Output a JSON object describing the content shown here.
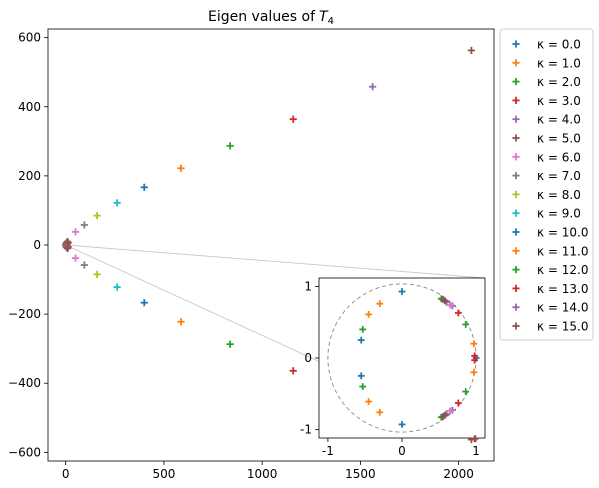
{
  "chart_data": [
    {
      "type": "scatter",
      "title": "Eigen values of T_4",
      "title_prefix": "Eigen values of",
      "title_math": "T",
      "title_sub": "4",
      "xlim": [
        -90,
        2180
      ],
      "ylim": [
        -625,
        625
      ],
      "xticks": [
        0,
        500,
        1000,
        1500,
        2000
      ],
      "xtick_labels": [
        "0",
        "500",
        "1000",
        "1500",
        "2000"
      ],
      "yticks": [
        -600,
        -400,
        -200,
        0,
        200,
        400,
        600
      ],
      "ytick_labels": [
        "−600",
        "−400",
        "−200",
        "0",
        "200",
        "400",
        "600"
      ],
      "grid": false,
      "legend_placement": "outside-upper-right",
      "marker": "+",
      "series": [
        {
          "name": "κ = 0.0",
          "color": "#1f77b4",
          "points": [
            [
              1,
              0
            ],
            [
              0,
              1
            ],
            [
              0,
              -1
            ],
            [
              -1,
              0
            ]
          ]
        },
        {
          "name": "κ = 1.0",
          "color": "#ff7f0e",
          "points": [
            [
              1.5,
              0.2
            ],
            [
              1.5,
              -0.2
            ],
            [
              1,
              0.1
            ]
          ]
        },
        {
          "name": "κ = 2.0",
          "color": "#2ca02c",
          "points": [
            [
              3,
              5
            ],
            [
              3,
              -5
            ],
            [
              5,
              3
            ],
            [
              5,
              -3
            ]
          ]
        },
        {
          "name": "κ = 3.0",
          "color": "#d62728",
          "points": [
            [
              5,
              6
            ],
            [
              5,
              -6
            ],
            [
              7,
              4
            ],
            [
              7,
              -4
            ]
          ]
        },
        {
          "name": "κ = 4.0",
          "color": "#9467bd",
          "points": [
            [
              7,
              8
            ],
            [
              7,
              -8
            ],
            [
              9,
              5
            ],
            [
              9,
              -5
            ]
          ]
        },
        {
          "name": "κ = 5.0",
          "color": "#8c564b",
          "points": [
            [
              10,
              10
            ],
            [
              10,
              -10
            ],
            [
              12,
              6
            ],
            [
              12,
              -6
            ]
          ]
        },
        {
          "name": "κ = 6.0",
          "color": "#e377c2",
          "points": [
            [
              50,
              38
            ],
            [
              50,
              -38
            ]
          ]
        },
        {
          "name": "κ = 7.0",
          "color": "#7f7f7f",
          "points": [
            [
              95,
              58
            ],
            [
              95,
              -58
            ]
          ]
        },
        {
          "name": "κ = 8.0",
          "color": "#bcbd22",
          "points": [
            [
              160,
              85
            ],
            [
              160,
              -85
            ]
          ]
        },
        {
          "name": "κ = 9.0",
          "color": "#17becf",
          "points": [
            [
              262,
              122
            ],
            [
              262,
              -122
            ]
          ]
        },
        {
          "name": "κ = 10.0",
          "color": "#1f77b4",
          "points": [
            [
              400,
              167
            ],
            [
              400,
              -167
            ]
          ]
        },
        {
          "name": "κ = 11.0",
          "color": "#ff7f0e",
          "points": [
            [
              587,
              222
            ],
            [
              587,
              -222
            ]
          ]
        },
        {
          "name": "κ = 12.0",
          "color": "#2ca02c",
          "points": [
            [
              837,
              287
            ],
            [
              837,
              -287
            ]
          ]
        },
        {
          "name": "κ = 13.0",
          "color": "#d62728",
          "points": [
            [
              1158,
              364
            ],
            [
              1158,
              -364
            ]
          ]
        },
        {
          "name": "κ = 14.0",
          "color": "#9467bd",
          "points": [
            [
              1562,
              458
            ],
            [
              1562,
              -458
            ]
          ]
        },
        {
          "name": "κ = 15.0",
          "color": "#8c564b",
          "points": [
            [
              2065,
              563
            ],
            [
              2065,
              -563
            ]
          ]
        }
      ]
    },
    {
      "type": "scatter",
      "title": "",
      "xlim": [
        -1.12,
        1.12
      ],
      "ylim": [
        -1.12,
        1.12
      ],
      "xticks": [
        -1,
        0,
        1
      ],
      "xtick_labels": [
        "-1",
        "0",
        "1"
      ],
      "yticks": [
        -1,
        0,
        1
      ],
      "ytick_labels": [
        "-1",
        "0",
        "1"
      ],
      "grid": false,
      "unit_circle": true,
      "marker": "+",
      "series": [
        {
          "name": "κ = 0.0",
          "color": "#1f77b4",
          "points": [
            [
              1,
              0
            ],
            [
              0,
              0.93
            ],
            [
              0,
              -0.93
            ],
            [
              -0.55,
              0.25
            ],
            [
              -0.55,
              -0.25
            ]
          ]
        },
        {
          "name": "κ = 1.0",
          "color": "#ff7f0e",
          "points": [
            [
              -0.3,
              0.76
            ],
            [
              -0.3,
              -0.76
            ],
            [
              -0.45,
              0.61
            ],
            [
              -0.45,
              -0.61
            ],
            [
              0.97,
              0.2
            ],
            [
              0.97,
              -0.2
            ]
          ]
        },
        {
          "name": "κ = 2.0",
          "color": "#2ca02c",
          "points": [
            [
              -0.53,
              0.4
            ],
            [
              -0.53,
              -0.4
            ],
            [
              0.86,
              0.47
            ],
            [
              0.86,
              -0.47
            ],
            [
              0.53,
              0.83
            ],
            [
              0.53,
              -0.83
            ]
          ]
        },
        {
          "name": "κ = 3.0",
          "color": "#d62728",
          "points": [
            [
              0.76,
              0.63
            ],
            [
              0.76,
              -0.63
            ],
            [
              0.98,
              0.03
            ],
            [
              0.98,
              -0.03
            ]
          ]
        },
        {
          "name": "κ = 4.0",
          "color": "#9467bd",
          "points": [
            [
              0.68,
              0.73
            ],
            [
              0.68,
              -0.73
            ],
            [
              0.6,
              0.78
            ],
            [
              0.6,
              -0.78
            ]
          ]
        },
        {
          "name": "κ = 5.0",
          "color": "#8c564b",
          "points": [
            [
              0.55,
              0.82
            ],
            [
              0.55,
              -0.82
            ],
            [
              0.58,
              0.8
            ],
            [
              0.58,
              -0.8
            ]
          ]
        },
        {
          "name": "κ = 6.0",
          "color": "#e377c2",
          "points": [
            [
              0.65,
              0.74
            ],
            [
              0.65,
              -0.74
            ]
          ]
        },
        {
          "name": "κ = 13.0",
          "color": "#d62728",
          "points": [
            [
              0.98,
              -1.13
            ]
          ]
        },
        {
          "name": "κ = 15.0",
          "color": "#8c564b",
          "points": [
            [
              0.99,
              -1.13
            ]
          ]
        }
      ]
    }
  ]
}
